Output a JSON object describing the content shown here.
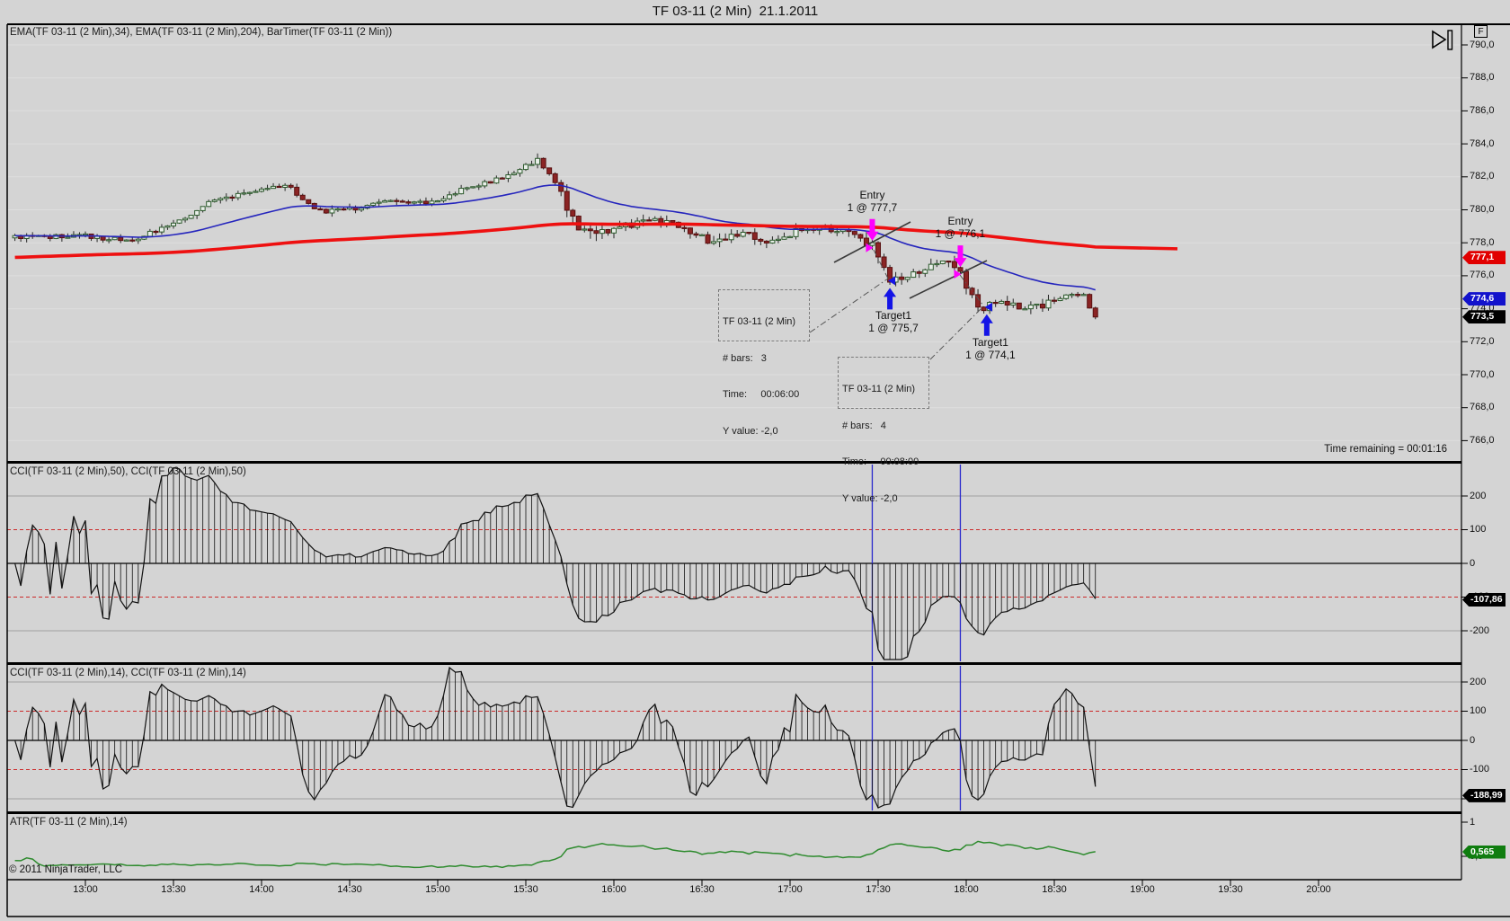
{
  "title": "TF 03-11 (2 Min)  21.1.2011",
  "toolbar": {
    "fixed_scale_label": "F"
  },
  "panels": {
    "price": {
      "label": "EMA(TF 03-11 (2 Min),34), EMA(TF 03-11 (2 Min),204), BarTimer(TF 03-11 (2 Min))"
    },
    "cci50": {
      "label": "CCI(TF 03-11 (2 Min),50), CCI(TF 03-11 (2 Min),50)"
    },
    "cci14": {
      "label": "CCI(TF 03-11 (2 Min),14), CCI(TF 03-11 (2 Min),14)"
    },
    "atr": {
      "label": "ATR(TF 03-11 (2 Min),14)"
    }
  },
  "status": {
    "time_remaining": "Time remaining = 00:01:16"
  },
  "copyright": "© 2011 NinjaTrader, LLC",
  "markers": {
    "ema204": "777,1",
    "ema34": "774,6",
    "last": "773,5",
    "cci50": "-107,86",
    "cci14": "-188,99",
    "atr": "0,565"
  },
  "chart_data": {
    "type": "candlestick",
    "instrument": "TF 03-11",
    "interval": "2 Min",
    "date": "21.1.2011",
    "bars_start": "12:36",
    "bars_count": 185,
    "price_axis": {
      "ticks": [
        "790,0",
        "788,0",
        "786,0",
        "784,0",
        "782,0",
        "780,0",
        "778,0",
        "776,0",
        "774,0",
        "772,0",
        "770,0",
        "768,0",
        "766,0"
      ],
      "ylim": [
        765.2,
        791.2
      ]
    },
    "cci_axis": {
      "ticks": [
        "200",
        "100",
        "0",
        "-100",
        "-200"
      ],
      "overbought": 100,
      "oversold": -100
    },
    "atr_axis": {
      "ticks": [
        "1",
        "0,5"
      ]
    },
    "time_axis": {
      "ticks": [
        "13:00",
        "13:30",
        "14:00",
        "14:30",
        "15:00",
        "15:30",
        "16:00",
        "16:30",
        "17:00",
        "17:30",
        "18:00",
        "18:30",
        "19:00",
        "19:30",
        "20:00"
      ]
    },
    "price_path": [
      [
        "12:36",
        778.3
      ],
      [
        "13:00",
        778.4
      ],
      [
        "13:16",
        778.1
      ],
      [
        "13:30",
        779.2
      ],
      [
        "13:44",
        780.6
      ],
      [
        "14:00",
        781.3
      ],
      [
        "14:08",
        781.5
      ],
      [
        "14:20",
        779.9
      ],
      [
        "14:32",
        780.1
      ],
      [
        "14:44",
        780.6
      ],
      [
        "14:56",
        780.4
      ],
      [
        "15:10",
        781.3
      ],
      [
        "15:24",
        782.1
      ],
      [
        "15:34",
        783.1
      ],
      [
        "15:40",
        781.6
      ],
      [
        "15:48",
        778.6
      ],
      [
        "16:00",
        778.9
      ],
      [
        "16:12",
        779.4
      ],
      [
        "16:24",
        778.9
      ],
      [
        "16:34",
        777.9
      ],
      [
        "16:44",
        778.6
      ],
      [
        "16:52",
        777.9
      ],
      [
        "17:02",
        778.7
      ],
      [
        "17:12",
        778.9
      ],
      [
        "17:22",
        778.4
      ],
      [
        "17:28",
        777.8
      ],
      [
        "17:34",
        775.8
      ],
      [
        "17:44",
        776.3
      ],
      [
        "17:54",
        777.0
      ],
      [
        "17:58",
        776.2
      ],
      [
        "18:04",
        773.9
      ],
      [
        "18:10",
        774.4
      ],
      [
        "18:20",
        774.1
      ],
      [
        "18:26",
        774.2
      ],
      [
        "18:34",
        775.0
      ],
      [
        "18:40",
        774.8
      ],
      [
        "18:44",
        773.5
      ]
    ],
    "volatility_path": [
      [
        "12:36",
        0.8
      ],
      [
        "15:30",
        0.8
      ],
      [
        "15:44",
        1.8
      ],
      [
        "16:10",
        1.3
      ],
      [
        "17:20",
        1.1
      ],
      [
        "17:30",
        1.5
      ],
      [
        "18:05",
        1.3
      ],
      [
        "18:44",
        1.0
      ]
    ],
    "indicators": {
      "ema_fast": 34,
      "ema_slow": 204,
      "cci_slow": 50,
      "cci_fast": 14,
      "atr": 14,
      "ema204_seed": 777.1
    },
    "current_values": {
      "ema204": 777.1,
      "ema34": 774.6,
      "last": 773.5,
      "cci50": -107.86,
      "cci14": -188.99,
      "atr": 0.565
    },
    "trades": [
      {
        "entry_label": [
          "Entry",
          "1 @ 777,7"
        ],
        "entry_time": "17:28",
        "entry_price": 777.7,
        "target_label": [
          "Target1",
          "1 @ 775,7"
        ],
        "target_time": "17:34",
        "target_price": 775.7
      },
      {
        "entry_label": [
          "Entry",
          "1 @ 776,1"
        ],
        "entry_time": "17:58",
        "entry_price": 776.1,
        "target_label": [
          "Target1",
          "1 @ 774,1"
        ],
        "target_time": "18:07",
        "target_price": 774.1
      }
    ],
    "rulers": [
      {
        "lines": [
          "TF 03-11 (2 Min)",
          "# bars:   3",
          "Time:     00:06:00",
          "Y value: -2,0"
        ]
      },
      {
        "lines": [
          "TF 03-11 (2 Min)",
          "# bars:   4",
          "Time:     00:08:00",
          "Y value: -2,0"
        ]
      }
    ],
    "colors": {
      "up_fill": "#e9efe9",
      "up_border": "#2d5a2d",
      "down_fill": "#8b2424",
      "down_border": "#581010",
      "wick": "#262626",
      "ema34": "#2525bd",
      "ema204": "#ee1010",
      "cci_line": "#111111",
      "atr_line": "#2e8b2e",
      "overbought_line": "#cc2a2a",
      "grid_gray": "#9f9f9f",
      "grid_light": "#dedede",
      "entry_marker": "#ff00ff",
      "target_marker": "#1414e6",
      "event_vline": "#2a2acc",
      "chip_ema204_bg": "#e10000",
      "chip_ema34_bg": "#1212cc",
      "chip_last_bg": "#000000",
      "chip_cci_bg": "#000000",
      "chip_atr_bg": "#0f7d0f"
    }
  }
}
